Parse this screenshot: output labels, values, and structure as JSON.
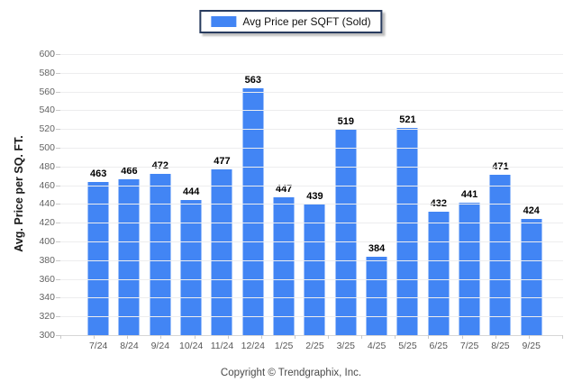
{
  "legend": {
    "label": "Avg Price per SQFT (Sold)"
  },
  "footer": {
    "copyright": "Copyright © Trendgraphix, Inc."
  },
  "colors": {
    "bar": "#4285f4",
    "legend_border": "#283b5e",
    "gridline": "#ededee",
    "axis_line": "#d6d6d6",
    "tick": "#c9c9c9",
    "axis_text": "#5f5f5f",
    "value_label": "#000000"
  },
  "chart_data": {
    "type": "bar",
    "title": "",
    "series_name": "Avg Price per SQFT (Sold)",
    "categories": [
      "7/24",
      "8/24",
      "9/24",
      "10/24",
      "11/24",
      "12/24",
      "1/25",
      "2/25",
      "3/25",
      "4/25",
      "5/25",
      "6/25",
      "7/25",
      "8/25",
      "9/25"
    ],
    "values": [
      463,
      466,
      472,
      444,
      477,
      563,
      447,
      439,
      519,
      384,
      521,
      432,
      441,
      471,
      424
    ],
    "xlabel": "",
    "ylabel": "Avg. Price per SQ. FT.",
    "ylim": [
      300,
      600
    ],
    "ytick_step": 20,
    "grid": true,
    "legend_position": "top-center",
    "value_labels_shown": true
  }
}
